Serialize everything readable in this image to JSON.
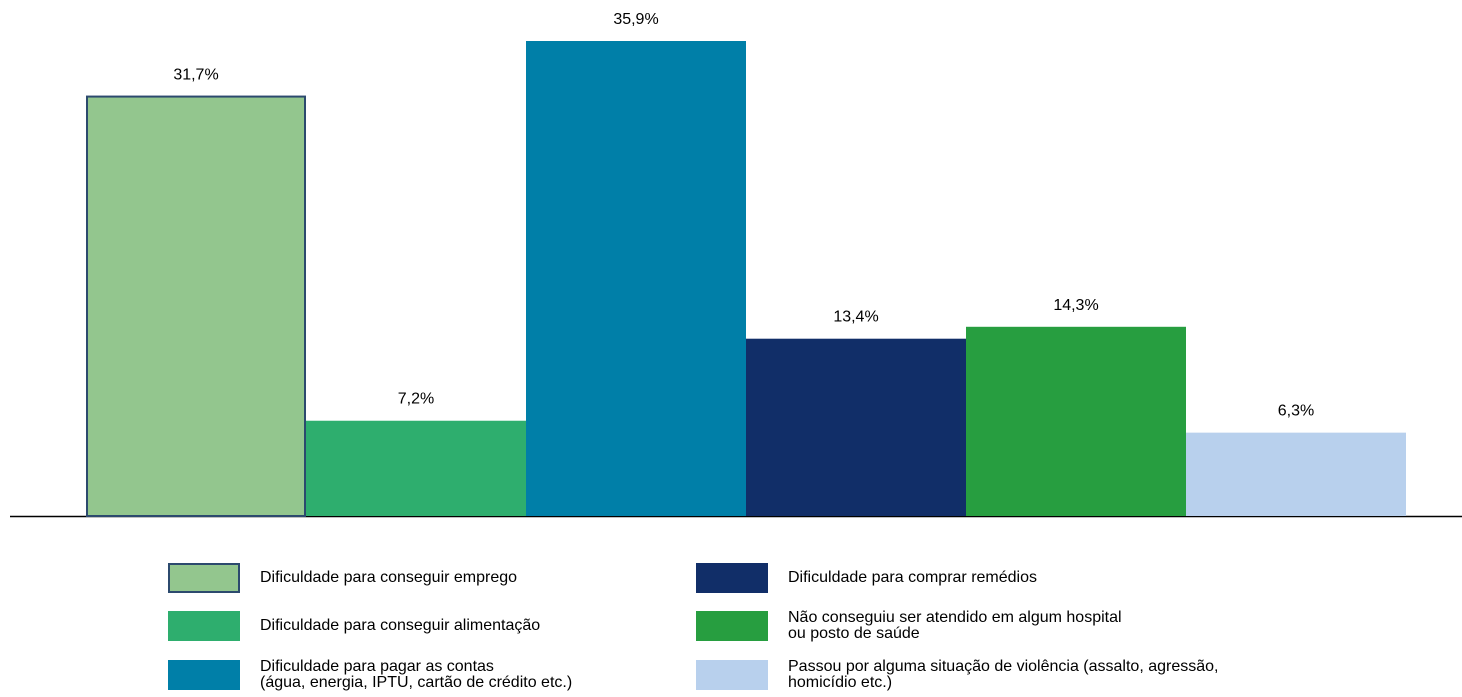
{
  "chart_data": {
    "type": "bar",
    "series": [
      {
        "name": "Dificuldade para conseguir emprego",
        "color": "#93c68e",
        "values": [
          31.7
        ],
        "value_labels": [
          "31,7%"
        ]
      },
      {
        "name": "Dificuldade para conseguir alimentação",
        "color": "#2eae6e",
        "values": [
          7.2
        ],
        "value_labels": [
          "7,2%"
        ]
      },
      {
        "name": "Dificuldade para pagar as contas\n(água, energia, IPTU, cartão de crédito etc.)",
        "color": "#007fa8",
        "values": [
          35.9
        ],
        "value_labels": [
          "35,9%"
        ]
      },
      {
        "name": "Dificuldade para comprar remédios",
        "color": "#112e68",
        "values": [
          13.4
        ],
        "value_labels": [
          "13,4%"
        ]
      },
      {
        "name": "Não conseguiu ser atendido em algum hospital\nou posto de saúde",
        "color": "#279e40",
        "values": [
          14.3
        ],
        "value_labels": [
          "14,3%"
        ]
      },
      {
        "name": "Passou por alguma situação de violência (assalto, agressão,\nhomicídio etc.)",
        "color": "#b8d0ed",
        "values": [
          6.3
        ],
        "value_labels": [
          "6,3%"
        ]
      }
    ]
  }
}
